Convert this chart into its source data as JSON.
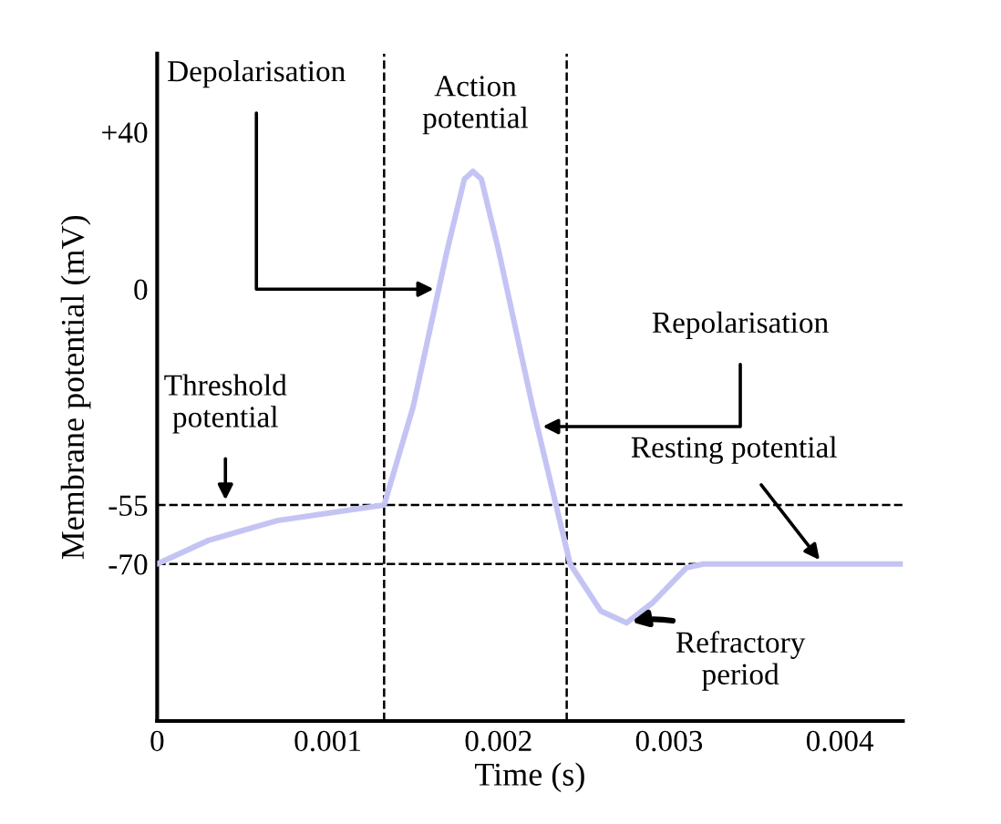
{
  "chart_data": {
    "type": "line",
    "xlabel": "Time (s)",
    "ylabel": "Membrane potential (mV)",
    "x": [
      0,
      0.0003,
      0.0007,
      0.00133,
      0.0015,
      0.0017,
      0.0018,
      0.00185,
      0.0019,
      0.002,
      0.0022,
      0.00242,
      0.0026,
      0.00275,
      0.0029,
      0.0031,
      0.0032,
      0.00437
    ],
    "series": [
      {
        "color": "#c4c4f4",
        "values": [
          -70,
          -64,
          -59,
          -55,
          -30,
          10,
          28,
          30,
          28,
          10,
          -30,
          -70,
          -82,
          -85,
          -80,
          -71,
          -70,
          -70
        ]
      }
    ],
    "xlim": [
      0,
      0.00437
    ],
    "ylim": [
      -110,
      60
    ],
    "xticks": [
      0,
      0.001,
      0.002,
      0.003,
      0.004
    ],
    "yticks": [
      {
        "value": 40,
        "label": "+40"
      },
      0,
      -55,
      -70
    ],
    "ref_lines": [
      {
        "axis": "y",
        "value": -55,
        "line_style": "dashed",
        "color": "#000000"
      },
      {
        "axis": "y",
        "value": -70,
        "line_style": "dashed",
        "color": "#000000"
      },
      {
        "axis": "x",
        "value": 0.00133,
        "line_style": "dashed",
        "color": "#000000"
      },
      {
        "axis": "x",
        "value": 0.0024,
        "line_style": "dashed",
        "color": "#000000"
      }
    ],
    "annotations": [
      {
        "text": "Depolarisation",
        "x": 0.00165,
        "y": 0
      },
      "Action\npotential",
      {
        "text": "Repolarisation",
        "x": 0.00223,
        "y": -35
      },
      {
        "text": "Threshold\npotential",
        "x": 0.0004,
        "y": -55
      },
      {
        "text": "Resting potential",
        "x": 0.0039,
        "y": -70
      },
      {
        "text": "Refractory\nperiod",
        "x": 0.00275,
        "y": -85
      }
    ],
    "grid": false,
    "marker": "none",
    "line_style": "solid"
  }
}
